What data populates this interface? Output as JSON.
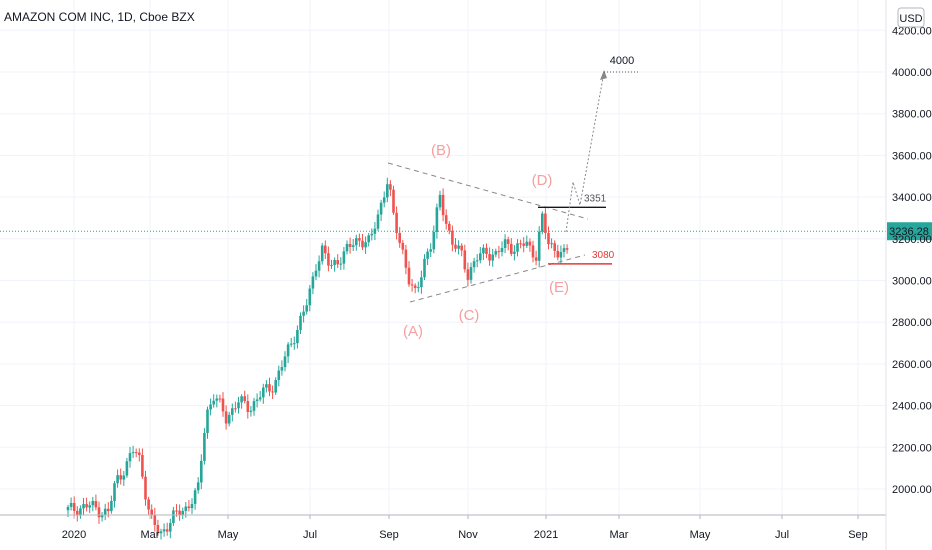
{
  "header": {
    "symbol_title": "AMAZON COM INC, 1D, Cboe BZX",
    "currency_button": "USD"
  },
  "chart_data": {
    "type": "candlestick",
    "title": "AMAZON COM INC, 1D, Cboe BZX",
    "last_price": "3236.28",
    "y_ticks": [
      "4200.00",
      "4000.00",
      "3800.00",
      "3600.00",
      "3400.00",
      "3200.00",
      "3000.00",
      "2800.00",
      "2600.00",
      "2400.00",
      "2200.00",
      "2000.00"
    ],
    "x_ticks": [
      "2020",
      "Mar",
      "May",
      "Jul",
      "Sep",
      "Nov",
      "2021",
      "Mar",
      "May",
      "Jul",
      "Sep"
    ],
    "ylim": [
      1850,
      4230
    ],
    "grid": true,
    "colors": {
      "up": "#26a69a",
      "down": "#ef5350",
      "grid": "#f0f3fa",
      "last_price": "#26a69a",
      "wave_label": "#f5a0a0"
    },
    "monthly_approx_close": [
      {
        "month": "Jan 2020",
        "close": 2008
      },
      {
        "month": "Feb 2020",
        "close": 1883
      },
      {
        "month": "Mar 2020",
        "close": 1950
      },
      {
        "month": "Apr 2020",
        "close": 2475
      },
      {
        "month": "May 2020",
        "close": 2440
      },
      {
        "month": "Jun 2020",
        "close": 2760
      },
      {
        "month": "Jul 2020",
        "close": 3165
      },
      {
        "month": "Aug 2020",
        "close": 3450
      },
      {
        "month": "Sep 2020",
        "close": 3148
      },
      {
        "month": "Oct 2020",
        "close": 3036
      },
      {
        "month": "Nov 2020",
        "close": 3168
      },
      {
        "month": "Dec 2020",
        "close": 3257
      },
      {
        "month": "Jan 2021",
        "close": 3236
      }
    ],
    "wave_labels": [
      "(A)",
      "(B)",
      "(C)",
      "(D)",
      "(E)"
    ],
    "annotations": {
      "target": "4000",
      "resistance": "3351",
      "support": "3080"
    }
  }
}
